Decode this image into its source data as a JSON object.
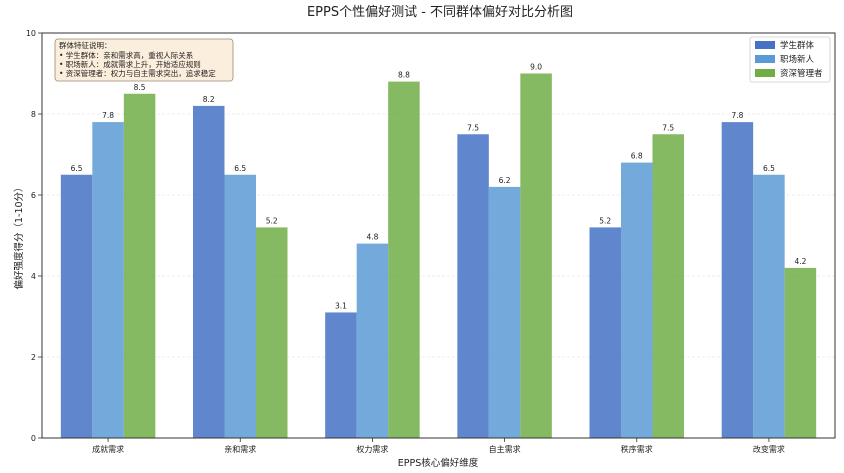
{
  "chart_data": {
    "type": "bar",
    "title": "EPPS个性偏好测试 - 不同群体偏好对比分析图",
    "xlabel": "EPPS核心偏好维度",
    "ylabel": "偏好强度得分（1-10分）",
    "ylim": [
      0,
      10
    ],
    "yticks": [
      "0",
      "2",
      "4",
      "6",
      "8",
      "10"
    ],
    "grid": "horizontal",
    "legend_position": "top-right",
    "categories": [
      "成就需求",
      "亲和需求",
      "权力需求",
      "自主需求",
      "秩序需求",
      "改变需求"
    ],
    "series": [
      {
        "name": "学生群体",
        "color": "#4472C4",
        "values": [
          6.5,
          8.2,
          3.1,
          7.5,
          5.2,
          7.8
        ],
        "labels": [
          "6.5",
          "8.2",
          "3.1",
          "7.5",
          "5.2",
          "7.8"
        ]
      },
      {
        "name": "职场新人",
        "color": "#5B9BD5",
        "values": [
          7.8,
          6.5,
          4.8,
          6.2,
          6.8,
          6.5
        ],
        "labels": [
          "7.8",
          "6.5",
          "4.8",
          "6.2",
          "6.8",
          "6.5"
        ]
      },
      {
        "name": "资深管理者",
        "color": "#70AD47",
        "values": [
          8.5,
          5.2,
          8.8,
          9.0,
          7.5,
          4.2
        ],
        "labels": [
          "8.5",
          "5.2",
          "8.8",
          "9.0",
          "7.5",
          "4.2"
        ]
      }
    ],
    "annotation": {
      "title": "群体特征说明：",
      "lines": [
        "• 学生群体：亲和需求高，重视人际关系",
        "• 职场新人：成就需求上升，开始适应规则",
        "• 资深管理者：权力与自主需求突出，追求稳定"
      ]
    }
  }
}
